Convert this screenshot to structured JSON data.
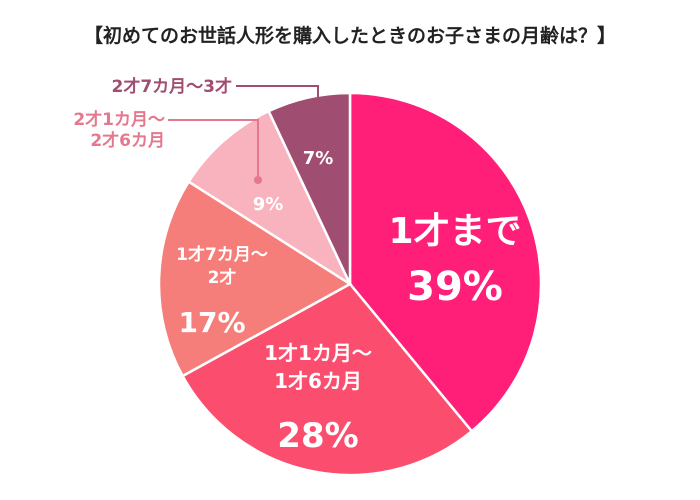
{
  "chart_data": {
    "type": "pie",
    "title": "【初めてのお世話人形を購入したときのお子さまの月齢は？】",
    "start": "12 o'clock, clockwise",
    "slices": [
      {
        "label": "1才まで",
        "value": 39,
        "value_text": "39%",
        "color": "#ff1f78"
      },
      {
        "label": "1才1カ月〜 1才6カ月",
        "value": 28,
        "value_text": "28%",
        "color": "#fb4e6e"
      },
      {
        "label": "1才7カ月〜 2才",
        "value": 17,
        "value_text": "17%",
        "color": "#f67e7a"
      },
      {
        "label": "2才1カ月〜 2才6カ月",
        "value": 9,
        "value_text": "9%",
        "color": "#f8b3be"
      },
      {
        "label": "2才7カ月〜3才",
        "value": 7,
        "value_text": "7%",
        "color": "#a04d72"
      }
    ],
    "label_lines": {
      "s0": [
        "1才まで"
      ],
      "s1": [
        "1才1カ月〜",
        "1才6カ月"
      ],
      "s2": [
        "1才7カ月〜",
        "2才"
      ],
      "s3": [
        "2才1カ月〜",
        "2才6カ月"
      ],
      "s4": [
        "2才7カ月〜3才"
      ]
    },
    "label_colors": {
      "s3": "#e5788e",
      "s4": "#a04d72"
    }
  }
}
